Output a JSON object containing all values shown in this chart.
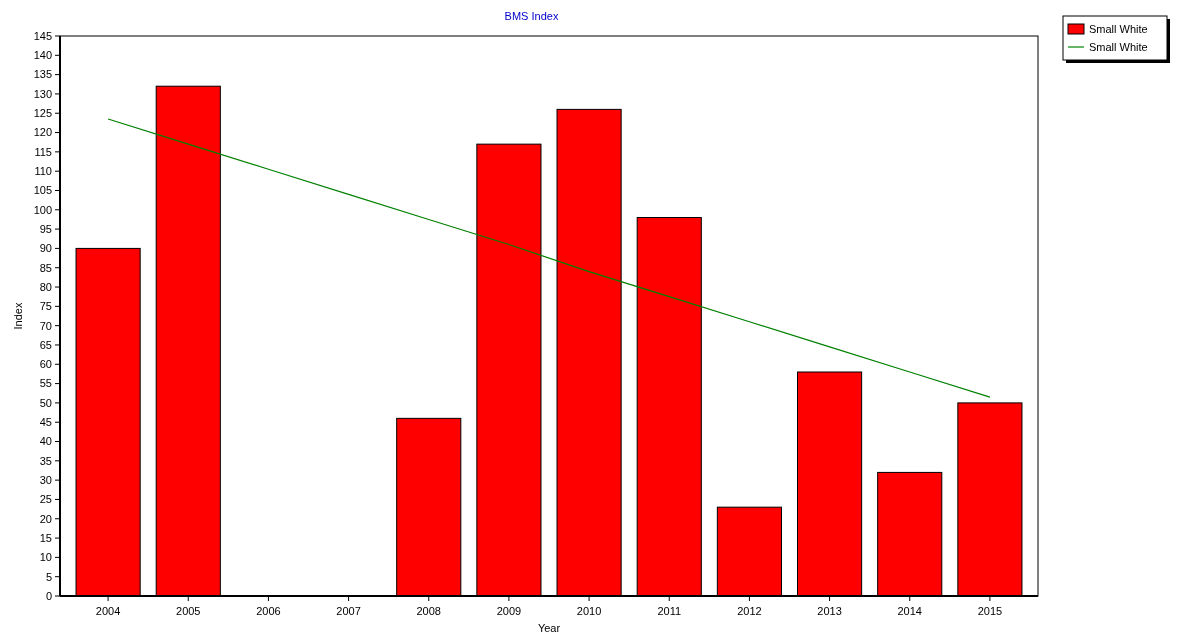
{
  "chart_data": {
    "type": "bar",
    "title": "BMS Index",
    "xlabel": "Year",
    "ylabel": "Index",
    "categories": [
      "2004",
      "2005",
      "2006",
      "2007",
      "2008",
      "2009",
      "2010",
      "2011",
      "2012",
      "2013",
      "2014",
      "2015"
    ],
    "series": [
      {
        "name": "Small White",
        "color": "#ff0000",
        "values": [
          90,
          132,
          null,
          null,
          46,
          117,
          126,
          98,
          23,
          58,
          32,
          50
        ]
      },
      {
        "name": "Small White",
        "type": "line",
        "color": "#008000",
        "values": [
          123.5,
          117,
          110.5,
          104,
          97.5,
          91,
          84,
          77.5,
          71,
          64.5,
          58,
          51.5
        ]
      }
    ],
    "ylim": [
      0,
      145
    ],
    "yticks": [
      0,
      5,
      10,
      15,
      20,
      25,
      30,
      35,
      40,
      45,
      50,
      55,
      60,
      65,
      70,
      75,
      80,
      85,
      90,
      95,
      100,
      105,
      110,
      115,
      120,
      125,
      130,
      135,
      140,
      145
    ],
    "grid": false,
    "legend": "top right"
  }
}
